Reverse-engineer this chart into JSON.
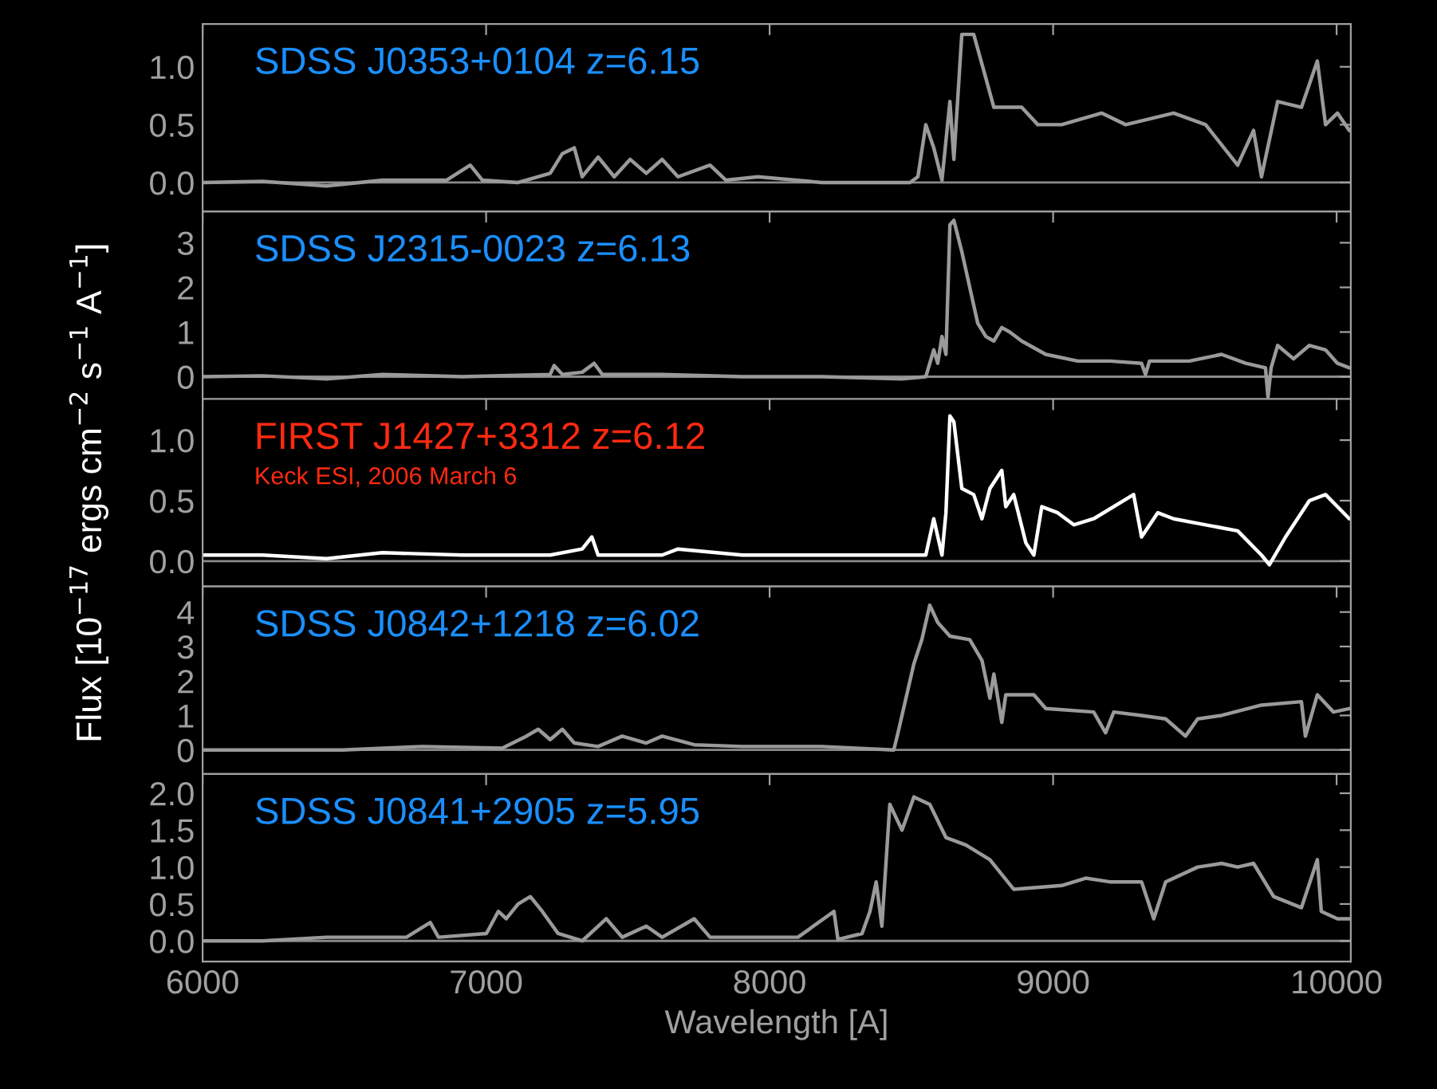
{
  "chart_data": [
    {
      "type": "line",
      "annotations": [
        "SDSS J0353+0104 z=6.15"
      ],
      "xlim": [
        6000,
        10050
      ],
      "xticks": [
        6000,
        7000,
        8000,
        9000,
        10000
      ],
      "ylim": [
        -0.25,
        1.37
      ],
      "yticks": [
        {
          "value": 0,
          "label": "0.0"
        },
        {
          "value": 0.5,
          "label": "0.5"
        },
        {
          "value": 1,
          "label": "1.0"
        }
      ],
      "tick_labels": "y",
      "grid": false,
      "ref_lines": [
        {
          "axis": "y",
          "value": 0,
          "color": "#8a8a8a"
        }
      ],
      "series": [
        {
          "color": "#9a9a9a",
          "x": [
            6000,
            6211,
            6437,
            6634,
            6860,
            6944,
            6987,
            7113,
            7226,
            7269,
            7311,
            7339,
            7395,
            7452,
            7508,
            7565,
            7621,
            7677,
            7790,
            7846,
            7959,
            8185,
            8495,
            8523,
            8551,
            8579,
            8608,
            8636,
            8650,
            8678,
            8720,
            8763,
            8791,
            8889,
            8946,
            9030,
            9171,
            9256,
            9425,
            9538,
            9651,
            9707,
            9735,
            9792,
            9876,
            9932,
            9961,
            10003,
            10045
          ],
          "values": [
            0,
            0.01,
            -0.03,
            0.02,
            0.02,
            0.15,
            0.02,
            0,
            0.08,
            0.25,
            0.3,
            0.05,
            0.22,
            0.05,
            0.2,
            0.08,
            0.2,
            0.05,
            0.15,
            0.02,
            0.05,
            0,
            0,
            0.05,
            0.5,
            0.3,
            0.02,
            0.7,
            0.2,
            1.28,
            1.28,
            0.9,
            0.65,
            0.65,
            0.5,
            0.5,
            0.6,
            0.5,
            0.6,
            0.5,
            0.15,
            0.45,
            0.05,
            0.7,
            0.65,
            1.05,
            0.5,
            0.6,
            0.45
          ]
        }
      ]
    },
    {
      "type": "line",
      "annotations": [
        "SDSS J2315-0023 z=6.13"
      ],
      "xlim": [
        6000,
        10050
      ],
      "xticks": [
        6000,
        7000,
        8000,
        9000,
        10000
      ],
      "ylim": [
        -0.5,
        3.7
      ],
      "yticks": [
        0,
        1,
        2,
        3
      ],
      "tick_labels": "y",
      "grid": false,
      "ref_lines": [
        {
          "axis": "y",
          "value": 0,
          "color": "#8a8a8a"
        }
      ],
      "series": [
        {
          "color": "#9a9a9a",
          "x": [
            6000,
            6211,
            6437,
            6634,
            6916,
            7226,
            7240,
            7269,
            7339,
            7381,
            7410,
            7621,
            7903,
            8185,
            8467,
            8551,
            8579,
            8593,
            8608,
            8622,
            8636,
            8650,
            8678,
            8706,
            8734,
            8763,
            8791,
            8819,
            8847,
            8889,
            8974,
            9087,
            9200,
            9312,
            9326,
            9340,
            9481,
            9594,
            9679,
            9749,
            9758,
            9769,
            9792,
            9848,
            9904,
            9961,
            10003,
            10045
          ],
          "values": [
            0,
            0.02,
            -0.05,
            0.05,
            0,
            0.05,
            0.25,
            0.05,
            0.1,
            0.3,
            0.05,
            0.05,
            0,
            0,
            -0.05,
            0,
            0.6,
            0.3,
            0.9,
            0.5,
            3.4,
            3.5,
            2.8,
            2.0,
            1.2,
            0.9,
            0.8,
            1.1,
            1.0,
            0.8,
            0.5,
            0.35,
            0.35,
            0.3,
            0.05,
            0.35,
            0.35,
            0.5,
            0.3,
            0.2,
            -0.45,
            0.2,
            0.7,
            0.4,
            0.7,
            0.6,
            0.3,
            0.2
          ]
        }
      ]
    },
    {
      "type": "line",
      "annotations": [
        "FIRST J1427+3312 z=6.12",
        "Keck ESI, 2006 March 6"
      ],
      "ylabel": "Flux [10$^{−17}$ ergs cm$^{−2}$ s$^{−1}$ A$^{−1}$]",
      "xlim": [
        6000,
        10050
      ],
      "xticks": [
        6000,
        7000,
        8000,
        9000,
        10000
      ],
      "ylim": [
        -0.21,
        1.34
      ],
      "yticks": [
        {
          "value": 0,
          "label": "0.0"
        },
        {
          "value": 0.5,
          "label": "0.5"
        },
        {
          "value": 1,
          "label": "1.0"
        }
      ],
      "tick_labels": "y",
      "grid": false,
      "ref_lines": [
        {
          "axis": "y",
          "value": 0,
          "color": "#8a8a8a"
        }
      ],
      "series": [
        {
          "color": "#ffffff",
          "x": [
            6000,
            6211,
            6437,
            6634,
            6916,
            7226,
            7339,
            7373,
            7395,
            7621,
            7677,
            7903,
            8185,
            8467,
            8551,
            8579,
            8608,
            8622,
            8636,
            8650,
            8678,
            8720,
            8749,
            8777,
            8819,
            8833,
            8861,
            8904,
            8932,
            8960,
            9016,
            9073,
            9143,
            9284,
            9312,
            9369,
            9425,
            9538,
            9651,
            9735,
            9763,
            9820,
            9904,
            9961,
            10045
          ],
          "values": [
            0.05,
            0.05,
            0.02,
            0.07,
            0.05,
            0.05,
            0.1,
            0.2,
            0.05,
            0.05,
            0.1,
            0.05,
            0.05,
            0.05,
            0.05,
            0.35,
            0.05,
            0.4,
            1.2,
            1.15,
            0.6,
            0.55,
            0.35,
            0.6,
            0.75,
            0.45,
            0.55,
            0.15,
            0.05,
            0.45,
            0.4,
            0.3,
            0.35,
            0.55,
            0.2,
            0.4,
            0.35,
            0.3,
            0.25,
            0.05,
            -0.03,
            0.2,
            0.5,
            0.55,
            0.35
          ]
        }
      ]
    },
    {
      "type": "line",
      "annotations": [
        "SDSS J0842+1218 z=6.02"
      ],
      "xlim": [
        6000,
        10050
      ],
      "xticks": [
        6000,
        7000,
        8000,
        9000,
        10000
      ],
      "ylim": [
        -0.7,
        4.74
      ],
      "yticks": [
        0,
        1,
        2,
        3,
        4
      ],
      "tick_labels": "y",
      "grid": false,
      "ref_lines": [
        {
          "axis": "y",
          "value": 0,
          "color": "#8a8a8a"
        }
      ],
      "series": [
        {
          "color": "#9a9a9a",
          "x": [
            6000,
            6493,
            6775,
            7057,
            7142,
            7184,
            7226,
            7269,
            7311,
            7395,
            7480,
            7565,
            7621,
            7734,
            7903,
            8185,
            8438,
            8453,
            8481,
            8509,
            8537,
            8565,
            8593,
            8636,
            8706,
            8749,
            8777,
            8791,
            8819,
            8833,
            8932,
            8974,
            9143,
            9185,
            9214,
            9312,
            9397,
            9467,
            9510,
            9594,
            9735,
            9876,
            9890,
            9932,
            9989,
            10045
          ],
          "values": [
            0,
            0,
            0.1,
            0.05,
            0.4,
            0.6,
            0.3,
            0.6,
            0.2,
            0.1,
            0.4,
            0.2,
            0.4,
            0.15,
            0.1,
            0.1,
            0,
            0.5,
            1.5,
            2.5,
            3.2,
            4.2,
            3.7,
            3.3,
            3.2,
            2.6,
            1.5,
            2.2,
            0.8,
            1.6,
            1.6,
            1.2,
            1.1,
            0.5,
            1.1,
            1.0,
            0.9,
            0.4,
            0.9,
            1.0,
            1.3,
            1.4,
            0.4,
            1.6,
            1.1,
            1.2
          ]
        }
      ]
    },
    {
      "type": "line",
      "annotations": [
        "SDSS J0841+2905 z=5.95"
      ],
      "xlabel": "Wavelength [A]",
      "xlim": [
        6000,
        10050
      ],
      "xticks": [
        6000,
        7000,
        8000,
        9000,
        10000
      ],
      "ylim": [
        -0.28,
        2.26
      ],
      "yticks": [
        {
          "value": 0,
          "label": "0.0"
        },
        {
          "value": 0.5,
          "label": "0.5"
        },
        {
          "value": 1,
          "label": "1.0"
        },
        {
          "value": 1.5,
          "label": "1.5"
        },
        {
          "value": 2,
          "label": "2.0"
        }
      ],
      "grid": false,
      "ref_lines": [
        {
          "axis": "y",
          "value": 0,
          "color": "#8a8a8a"
        }
      ],
      "series": [
        {
          "color": "#9a9a9a",
          "x": [
            6000,
            6211,
            6437,
            6719,
            6803,
            6832,
            7001,
            7043,
            7071,
            7113,
            7156,
            7198,
            7254,
            7339,
            7424,
            7480,
            7565,
            7621,
            7734,
            7790,
            8044,
            8100,
            8227,
            8241,
            8326,
            8354,
            8376,
            8396,
            8424,
            8467,
            8509,
            8565,
            8622,
            8692,
            8777,
            8861,
            9030,
            9115,
            9200,
            9312,
            9355,
            9397,
            9510,
            9594,
            9651,
            9707,
            9778,
            9876,
            9932,
            9946,
            10003,
            10045
          ],
          "values": [
            0,
            0,
            0.05,
            0.05,
            0.25,
            0.05,
            0.1,
            0.4,
            0.3,
            0.5,
            0.6,
            0.4,
            0.1,
            0,
            0.3,
            0.05,
            0.2,
            0.05,
            0.3,
            0.05,
            0.05,
            0.05,
            0.4,
            0.02,
            0.1,
            0.4,
            0.8,
            0.2,
            1.85,
            1.5,
            1.95,
            1.85,
            1.4,
            1.3,
            1.1,
            0.7,
            0.75,
            0.85,
            0.8,
            0.8,
            0.3,
            0.8,
            1.0,
            1.05,
            1.0,
            1.05,
            0.6,
            0.45,
            1.1,
            0.4,
            0.3,
            0.3
          ]
        }
      ]
    }
  ]
}
